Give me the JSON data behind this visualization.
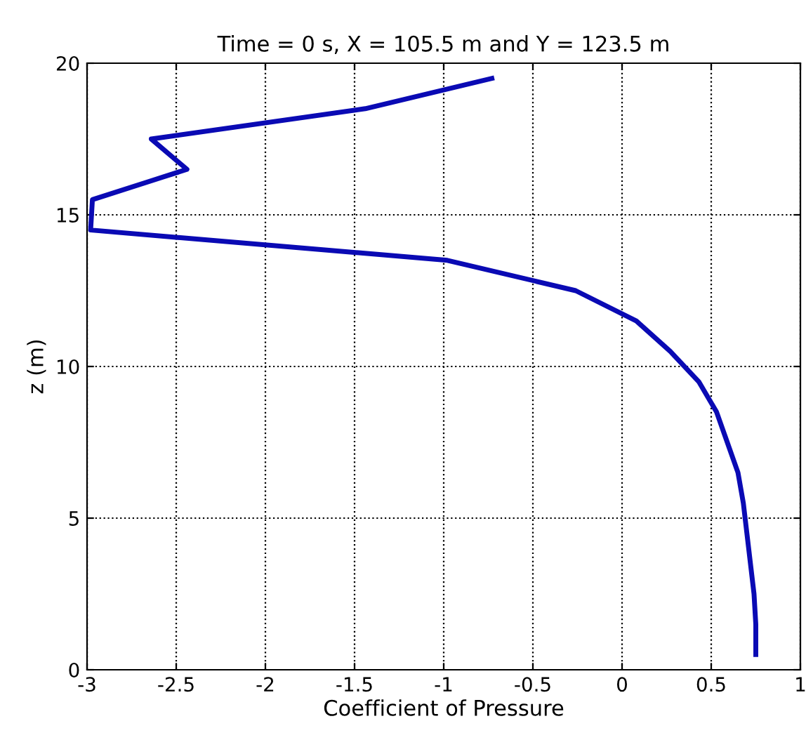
{
  "chart_data": {
    "type": "line",
    "title": "Time = 0 s, X = 105.5 m and Y = 123.5 m",
    "xlabel": "Coefficient of Pressure",
    "ylabel": "z (m)",
    "series": [
      {
        "color": "#0a0ab4",
        "x": [
          -0.73,
          -1.44,
          -2.64,
          -2.44,
          -2.97,
          -2.98,
          -0.98,
          -0.26,
          0.08,
          0.27,
          0.43,
          0.53,
          0.59,
          0.65,
          0.68,
          0.7,
          0.72,
          0.74,
          0.75,
          0.75
        ],
        "values": [
          19.5,
          18.5,
          17.5,
          16.5,
          15.5,
          14.5,
          13.5,
          12.5,
          11.5,
          10.5,
          9.5,
          8.5,
          7.5,
          6.5,
          5.5,
          4.5,
          3.5,
          2.5,
          1.5,
          0.5
        ]
      }
    ],
    "xlim": [
      -3,
      1
    ],
    "xticks": [
      -3,
      -2.5,
      -2,
      -1.5,
      -1,
      -0.5,
      0,
      0.5,
      1
    ],
    "ylim": [
      0,
      20
    ],
    "yticks": [
      0,
      5,
      10,
      15,
      20
    ],
    "grid": true,
    "line_style": "solid",
    "marker": "none"
  }
}
